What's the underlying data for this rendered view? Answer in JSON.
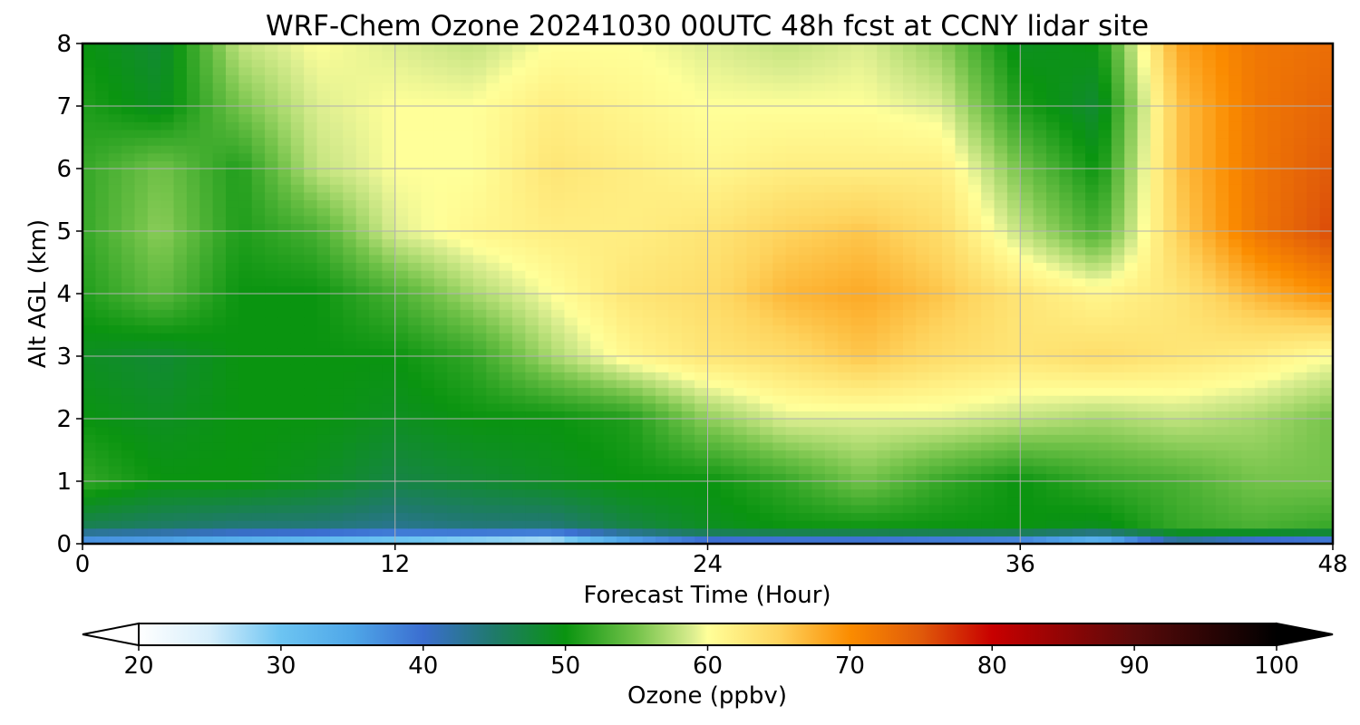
{
  "chart_data": {
    "type": "heatmap",
    "title": "WRF-Chem Ozone  20241030 00UTC 48h fcst at CCNY lidar site",
    "xlabel": "Forecast Time (Hour)",
    "ylabel": "Alt AGL (km)",
    "xlim": [
      0,
      48
    ],
    "ylim": [
      0,
      8
    ],
    "x_ticks": [
      0,
      12,
      24,
      36,
      48
    ],
    "y_ticks": [
      0,
      1,
      2,
      3,
      4,
      5,
      6,
      7,
      8
    ],
    "grid": true,
    "x": [
      0,
      3,
      6,
      9,
      12,
      15,
      18,
      21,
      24,
      27,
      30,
      33,
      36,
      39,
      42,
      45,
      48
    ],
    "y": [
      0,
      0.25,
      1,
      2,
      3,
      4,
      5,
      6,
      7,
      8
    ],
    "z": [
      [
        34,
        33,
        30,
        28,
        26,
        24,
        22,
        32,
        37,
        36,
        36,
        35,
        34,
        28,
        40,
        36,
        35
      ],
      [
        46,
        45,
        44,
        44,
        43,
        44,
        44,
        47,
        49,
        50,
        50,
        50,
        50,
        49,
        52,
        53,
        52
      ],
      [
        52,
        50,
        50,
        49,
        47,
        48,
        49,
        50,
        50,
        52,
        55,
        52,
        50,
        52,
        53,
        55,
        55
      ],
      [
        50,
        49,
        50,
        50,
        49,
        50,
        50,
        51,
        56,
        59,
        59,
        59,
        58,
        57,
        58,
        57,
        55
      ],
      [
        49,
        48,
        50,
        50,
        50,
        52,
        57,
        61,
        63,
        64,
        66,
        64,
        63,
        64,
        63,
        62,
        60
      ],
      [
        51,
        54,
        50,
        50,
        53,
        57,
        60,
        63,
        64,
        67,
        68,
        66,
        63,
        61,
        63,
        67,
        70
      ],
      [
        52,
        56,
        51,
        53,
        59,
        61,
        62,
        62,
        63,
        65,
        66,
        64,
        58,
        53,
        65,
        72,
        76
      ],
      [
        52,
        55,
        51,
        58,
        60,
        60,
        63,
        62,
        61,
        62,
        62,
        62,
        55,
        50,
        66,
        72,
        75
      ],
      [
        51,
        49,
        55,
        59,
        60,
        60,
        62,
        61,
        60,
        60,
        60,
        59,
        51,
        48,
        66,
        72,
        74
      ],
      [
        50,
        48,
        58,
        60,
        59,
        58,
        60,
        60,
        59,
        58,
        59,
        56,
        49,
        50,
        68,
        72,
        73
      ]
    ],
    "colorbar": {
      "label": "Ozone  (ppbv)",
      "min": 20,
      "max": 100,
      "ticks": [
        20,
        30,
        40,
        50,
        60,
        70,
        80,
        90,
        100
      ],
      "extend": "both",
      "stops": [
        {
          "v": 20,
          "c": "#ffffff"
        },
        {
          "v": 25,
          "c": "#d6eefb"
        },
        {
          "v": 30,
          "c": "#6cc4f2"
        },
        {
          "v": 35,
          "c": "#4fa7e8"
        },
        {
          "v": 40,
          "c": "#3b6ed0"
        },
        {
          "v": 45,
          "c": "#1f7a6a"
        },
        {
          "v": 50,
          "c": "#0a9410"
        },
        {
          "v": 55,
          "c": "#74c34a"
        },
        {
          "v": 59,
          "c": "#dcee90"
        },
        {
          "v": 60,
          "c": "#ffff99"
        },
        {
          "v": 65,
          "c": "#fed45e"
        },
        {
          "v": 70,
          "c": "#fb8c00"
        },
        {
          "v": 75,
          "c": "#e05a0a"
        },
        {
          "v": 80,
          "c": "#c80000"
        },
        {
          "v": 90,
          "c": "#5a0a0a"
        },
        {
          "v": 100,
          "c": "#000000"
        }
      ]
    }
  }
}
